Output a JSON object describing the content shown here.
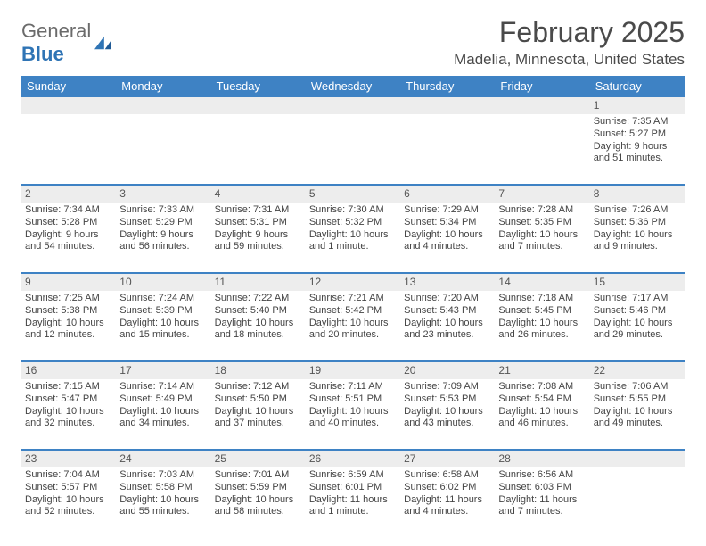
{
  "logo": {
    "text1": "General",
    "text2": "Blue"
  },
  "title": "February 2025",
  "location": "Madelia, Minnesota, United States",
  "colors": {
    "header_bar": "#3e82c4",
    "week_divider": "#3e82c4",
    "daynum_bg": "#ededed",
    "logo_gray": "#6b6b6b",
    "logo_blue": "#2f74b5"
  },
  "day_headers": [
    "Sunday",
    "Monday",
    "Tuesday",
    "Wednesday",
    "Thursday",
    "Friday",
    "Saturday"
  ],
  "weeks": [
    [
      {
        "num": "",
        "lines": []
      },
      {
        "num": "",
        "lines": []
      },
      {
        "num": "",
        "lines": []
      },
      {
        "num": "",
        "lines": []
      },
      {
        "num": "",
        "lines": []
      },
      {
        "num": "",
        "lines": []
      },
      {
        "num": "1",
        "lines": [
          "Sunrise: 7:35 AM",
          "Sunset: 5:27 PM",
          "Daylight: 9 hours",
          "and 51 minutes."
        ]
      }
    ],
    [
      {
        "num": "2",
        "lines": [
          "Sunrise: 7:34 AM",
          "Sunset: 5:28 PM",
          "Daylight: 9 hours",
          "and 54 minutes."
        ]
      },
      {
        "num": "3",
        "lines": [
          "Sunrise: 7:33 AM",
          "Sunset: 5:29 PM",
          "Daylight: 9 hours",
          "and 56 minutes."
        ]
      },
      {
        "num": "4",
        "lines": [
          "Sunrise: 7:31 AM",
          "Sunset: 5:31 PM",
          "Daylight: 9 hours",
          "and 59 minutes."
        ]
      },
      {
        "num": "5",
        "lines": [
          "Sunrise: 7:30 AM",
          "Sunset: 5:32 PM",
          "Daylight: 10 hours",
          "and 1 minute."
        ]
      },
      {
        "num": "6",
        "lines": [
          "Sunrise: 7:29 AM",
          "Sunset: 5:34 PM",
          "Daylight: 10 hours",
          "and 4 minutes."
        ]
      },
      {
        "num": "7",
        "lines": [
          "Sunrise: 7:28 AM",
          "Sunset: 5:35 PM",
          "Daylight: 10 hours",
          "and 7 minutes."
        ]
      },
      {
        "num": "8",
        "lines": [
          "Sunrise: 7:26 AM",
          "Sunset: 5:36 PM",
          "Daylight: 10 hours",
          "and 9 minutes."
        ]
      }
    ],
    [
      {
        "num": "9",
        "lines": [
          "Sunrise: 7:25 AM",
          "Sunset: 5:38 PM",
          "Daylight: 10 hours",
          "and 12 minutes."
        ]
      },
      {
        "num": "10",
        "lines": [
          "Sunrise: 7:24 AM",
          "Sunset: 5:39 PM",
          "Daylight: 10 hours",
          "and 15 minutes."
        ]
      },
      {
        "num": "11",
        "lines": [
          "Sunrise: 7:22 AM",
          "Sunset: 5:40 PM",
          "Daylight: 10 hours",
          "and 18 minutes."
        ]
      },
      {
        "num": "12",
        "lines": [
          "Sunrise: 7:21 AM",
          "Sunset: 5:42 PM",
          "Daylight: 10 hours",
          "and 20 minutes."
        ]
      },
      {
        "num": "13",
        "lines": [
          "Sunrise: 7:20 AM",
          "Sunset: 5:43 PM",
          "Daylight: 10 hours",
          "and 23 minutes."
        ]
      },
      {
        "num": "14",
        "lines": [
          "Sunrise: 7:18 AM",
          "Sunset: 5:45 PM",
          "Daylight: 10 hours",
          "and 26 minutes."
        ]
      },
      {
        "num": "15",
        "lines": [
          "Sunrise: 7:17 AM",
          "Sunset: 5:46 PM",
          "Daylight: 10 hours",
          "and 29 minutes."
        ]
      }
    ],
    [
      {
        "num": "16",
        "lines": [
          "Sunrise: 7:15 AM",
          "Sunset: 5:47 PM",
          "Daylight: 10 hours",
          "and 32 minutes."
        ]
      },
      {
        "num": "17",
        "lines": [
          "Sunrise: 7:14 AM",
          "Sunset: 5:49 PM",
          "Daylight: 10 hours",
          "and 34 minutes."
        ]
      },
      {
        "num": "18",
        "lines": [
          "Sunrise: 7:12 AM",
          "Sunset: 5:50 PM",
          "Daylight: 10 hours",
          "and 37 minutes."
        ]
      },
      {
        "num": "19",
        "lines": [
          "Sunrise: 7:11 AM",
          "Sunset: 5:51 PM",
          "Daylight: 10 hours",
          "and 40 minutes."
        ]
      },
      {
        "num": "20",
        "lines": [
          "Sunrise: 7:09 AM",
          "Sunset: 5:53 PM",
          "Daylight: 10 hours",
          "and 43 minutes."
        ]
      },
      {
        "num": "21",
        "lines": [
          "Sunrise: 7:08 AM",
          "Sunset: 5:54 PM",
          "Daylight: 10 hours",
          "and 46 minutes."
        ]
      },
      {
        "num": "22",
        "lines": [
          "Sunrise: 7:06 AM",
          "Sunset: 5:55 PM",
          "Daylight: 10 hours",
          "and 49 minutes."
        ]
      }
    ],
    [
      {
        "num": "23",
        "lines": [
          "Sunrise: 7:04 AM",
          "Sunset: 5:57 PM",
          "Daylight: 10 hours",
          "and 52 minutes."
        ]
      },
      {
        "num": "24",
        "lines": [
          "Sunrise: 7:03 AM",
          "Sunset: 5:58 PM",
          "Daylight: 10 hours",
          "and 55 minutes."
        ]
      },
      {
        "num": "25",
        "lines": [
          "Sunrise: 7:01 AM",
          "Sunset: 5:59 PM",
          "Daylight: 10 hours",
          "and 58 minutes."
        ]
      },
      {
        "num": "26",
        "lines": [
          "Sunrise: 6:59 AM",
          "Sunset: 6:01 PM",
          "Daylight: 11 hours",
          "and 1 minute."
        ]
      },
      {
        "num": "27",
        "lines": [
          "Sunrise: 6:58 AM",
          "Sunset: 6:02 PM",
          "Daylight: 11 hours",
          "and 4 minutes."
        ]
      },
      {
        "num": "28",
        "lines": [
          "Sunrise: 6:56 AM",
          "Sunset: 6:03 PM",
          "Daylight: 11 hours",
          "and 7 minutes."
        ]
      },
      {
        "num": "",
        "lines": []
      }
    ]
  ]
}
